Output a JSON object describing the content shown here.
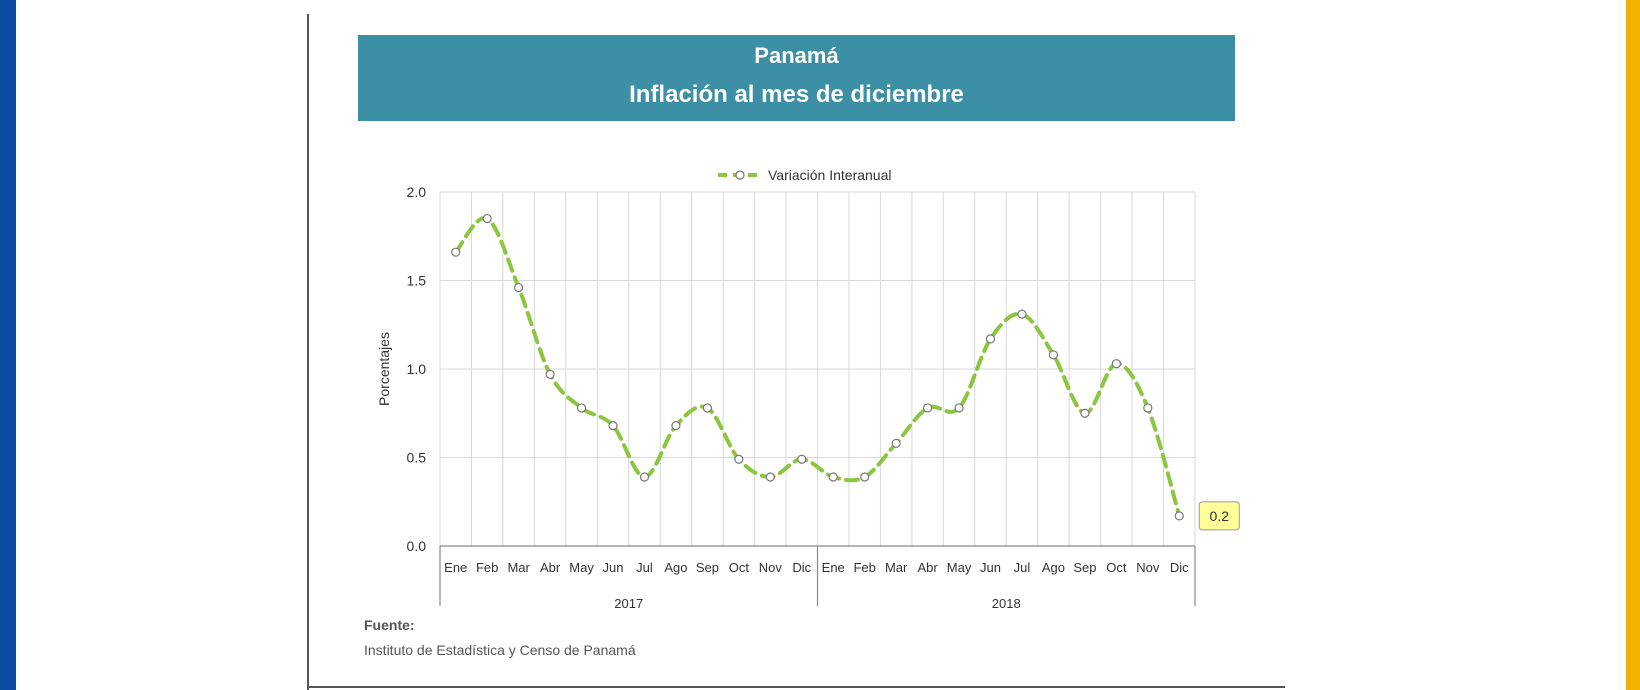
{
  "header": {
    "title": "Panamá",
    "subtitle": "Inflación al mes de diciembre"
  },
  "source": {
    "label": "Fuente:",
    "text": "Instituto de Estadística y Censo de Panamá"
  },
  "colors": {
    "edge_left": "#0c4da2",
    "edge_right": "#f2b300",
    "title_bg": "#3d8fa5",
    "series": "#8cc63f",
    "callout_bg": "#ffff99"
  },
  "chart_data": {
    "type": "line",
    "ylabel": "Porcentajes",
    "ylim": [
      0.0,
      2.0
    ],
    "yticks": [
      "0.0",
      "0.5",
      "1.0",
      "1.5",
      "2.0"
    ],
    "grid": true,
    "legend_position": "top-center",
    "categories": [
      "Ene",
      "Feb",
      "Mar",
      "Abr",
      "May",
      "Jun",
      "Jul",
      "Ago",
      "Sep",
      "Oct",
      "Nov",
      "Dic",
      "Ene",
      "Feb",
      "Mar",
      "Abr",
      "May",
      "Jun",
      "Jul",
      "Ago",
      "Sep",
      "Oct",
      "Nov",
      "Dic"
    ],
    "groups": [
      {
        "label": "2017",
        "count": 12
      },
      {
        "label": "2018",
        "count": 12
      }
    ],
    "series": [
      {
        "name": "Variación Interanual",
        "values": [
          1.66,
          1.85,
          1.46,
          0.97,
          0.78,
          0.68,
          0.39,
          0.68,
          0.78,
          0.49,
          0.39,
          0.49,
          0.39,
          0.39,
          0.58,
          0.78,
          0.78,
          1.17,
          1.31,
          1.08,
          0.75,
          1.03,
          0.78,
          0.17
        ]
      }
    ],
    "callout": {
      "label": "0.2",
      "index": 23
    }
  }
}
